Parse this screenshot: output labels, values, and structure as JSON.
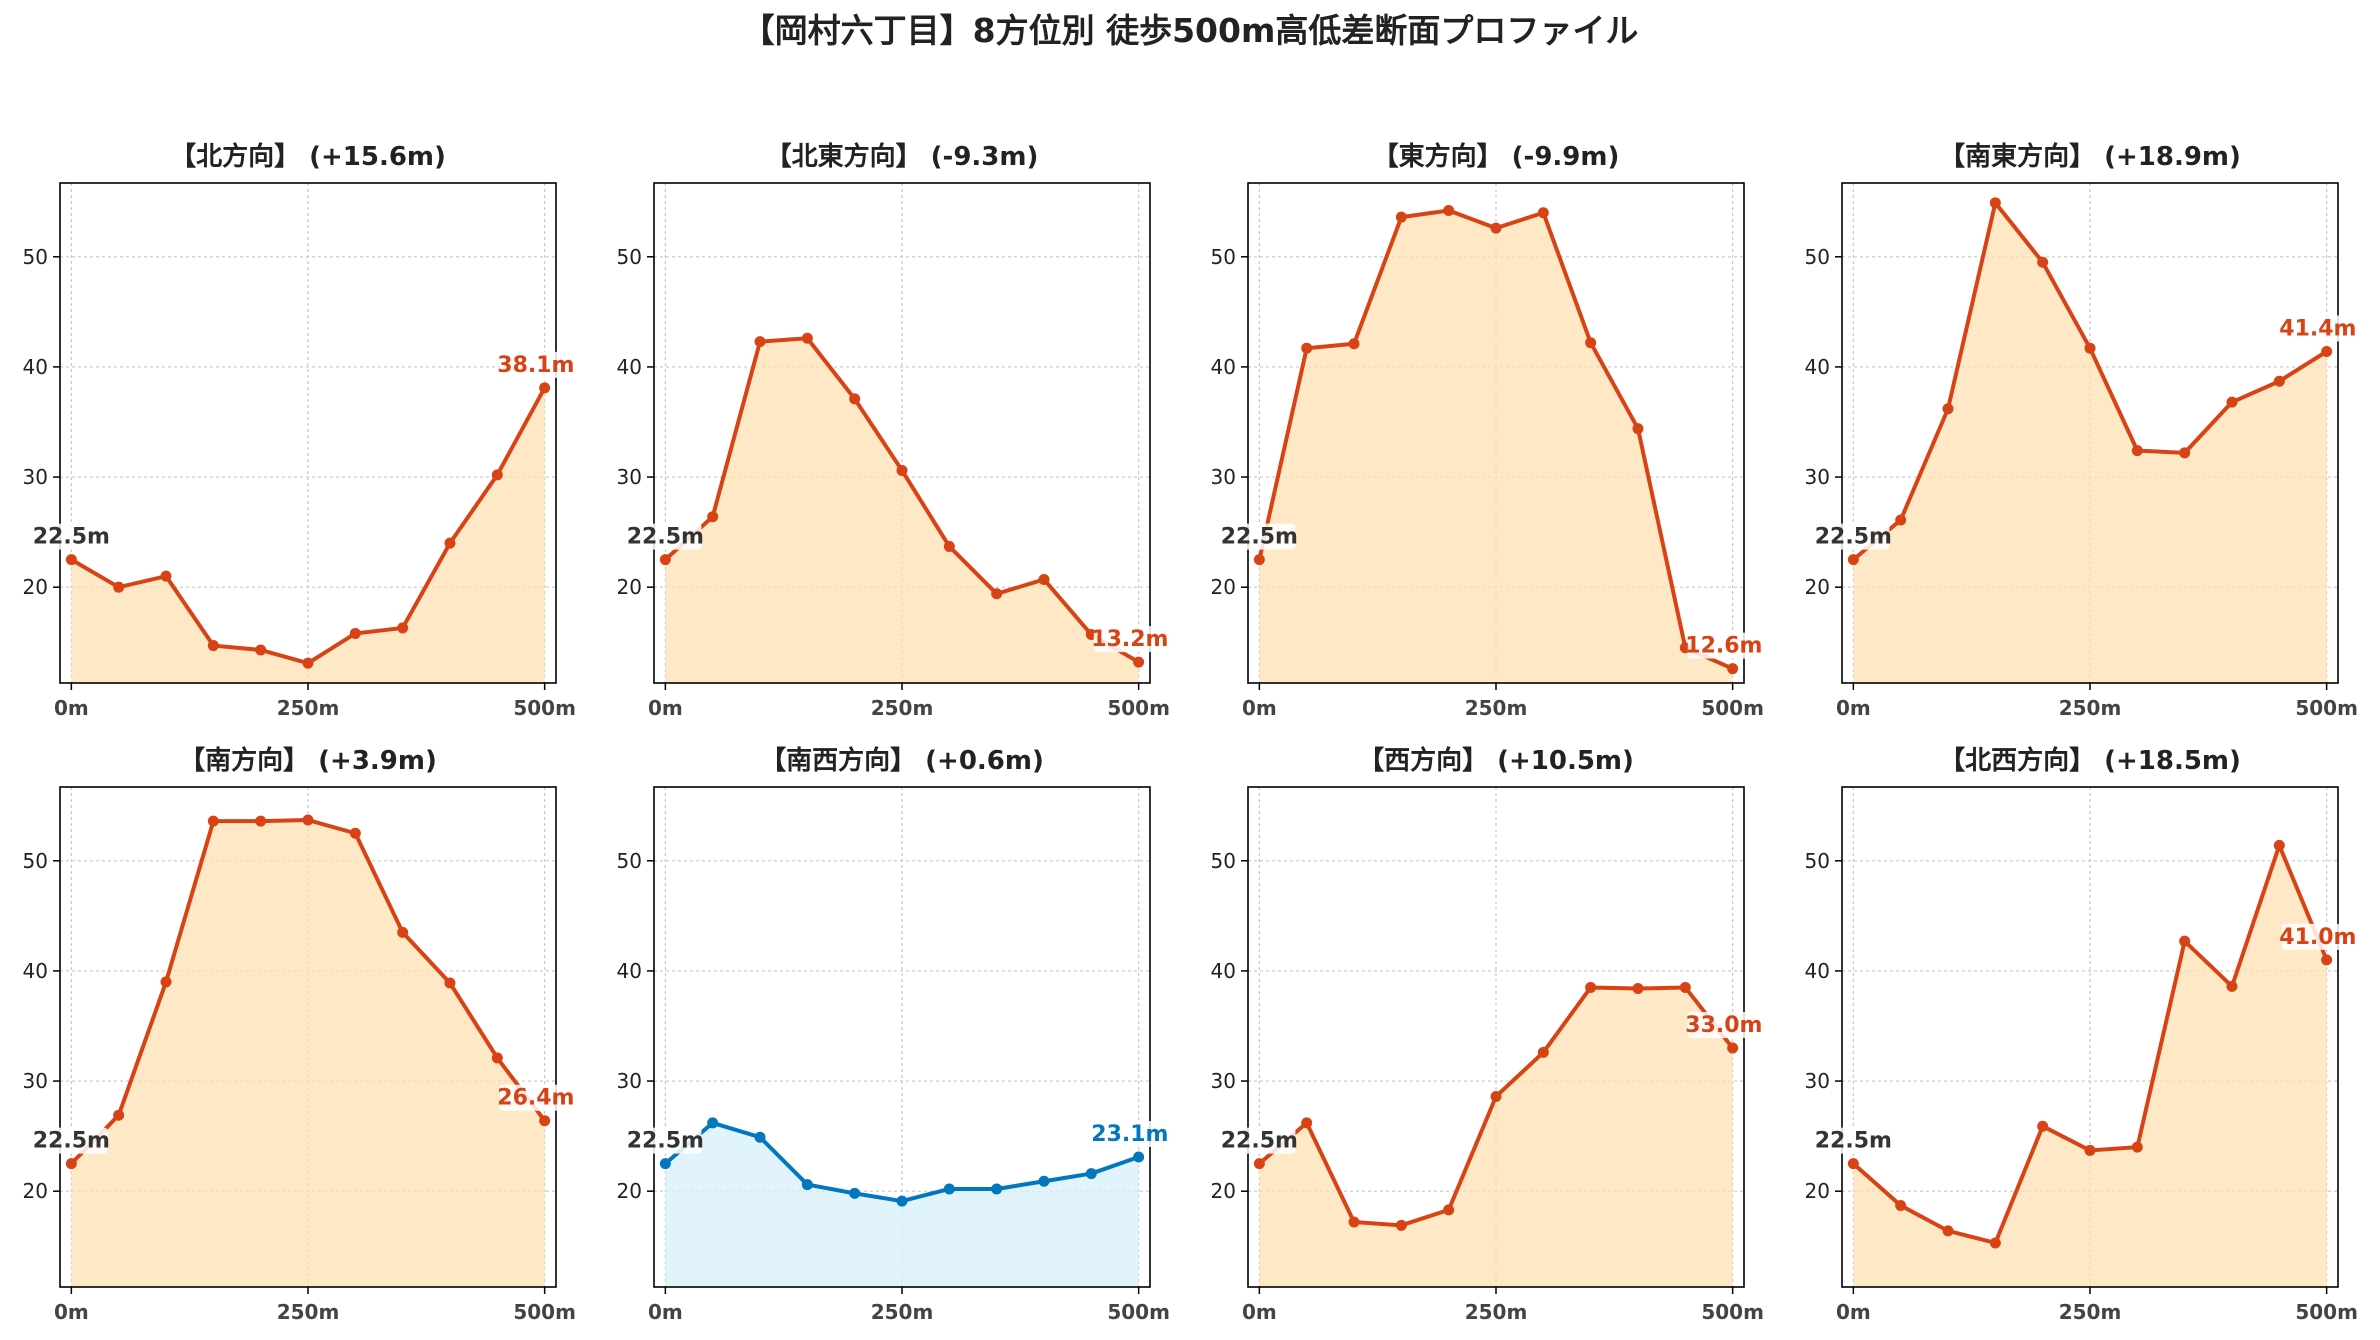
{
  "figure": {
    "title": "【岡村六丁目】8方位別 徒歩500m高低差断面プロファイル"
  },
  "colors": {
    "up_line": "#d84315",
    "up_fill": "#ffe0b2",
    "down_line": "#0277bd",
    "down_fill": "#d7f0fa",
    "start_label": "#333333",
    "grid": "#c8c8c8"
  },
  "chart_data": [
    {
      "type": "area",
      "title": "【北方向】 (+15.6m)",
      "x": [
        0,
        50,
        100,
        150,
        200,
        250,
        300,
        350,
        400,
        450,
        500
      ],
      "values": [
        22.5,
        20.0,
        21.0,
        14.7,
        14.3,
        13.1,
        15.8,
        16.3,
        24.0,
        30.2,
        38.1
      ],
      "start_label": "22.5m",
      "end_label": "38.1m",
      "style": "up",
      "xticks": [
        "0m",
        "250m",
        "500m"
      ],
      "yticks": [
        "20",
        "30",
        "40",
        "50"
      ],
      "xlim": [
        -12,
        512
      ],
      "ylim": [
        11.3,
        56.7
      ],
      "grid": true
    },
    {
      "type": "area",
      "title": "【北東方向】 (-9.3m)",
      "x": [
        0,
        50,
        100,
        150,
        200,
        250,
        300,
        350,
        400,
        450,
        500
      ],
      "values": [
        22.5,
        26.4,
        42.3,
        42.6,
        37.1,
        30.6,
        23.7,
        19.4,
        20.7,
        15.7,
        13.2
      ],
      "start_label": "22.5m",
      "end_label": "13.2m",
      "style": "up",
      "xticks": [
        "0m",
        "250m",
        "500m"
      ],
      "yticks": [
        "20",
        "30",
        "40",
        "50"
      ],
      "xlim": [
        -12,
        512
      ],
      "ylim": [
        11.3,
        56.7
      ],
      "grid": true
    },
    {
      "type": "area",
      "title": "【東方向】 (-9.9m)",
      "x": [
        0,
        50,
        100,
        150,
        200,
        250,
        300,
        350,
        400,
        450,
        500
      ],
      "values": [
        22.5,
        41.7,
        42.1,
        53.6,
        54.2,
        52.6,
        54.0,
        42.2,
        34.4,
        14.5,
        12.6
      ],
      "start_label": "22.5m",
      "end_label": "12.6m",
      "style": "up",
      "xticks": [
        "0m",
        "250m",
        "500m"
      ],
      "yticks": [
        "20",
        "30",
        "40",
        "50"
      ],
      "xlim": [
        -12,
        512
      ],
      "ylim": [
        11.3,
        56.7
      ],
      "grid": true
    },
    {
      "type": "area",
      "title": "【南東方向】 (+18.9m)",
      "x": [
        0,
        50,
        100,
        150,
        200,
        250,
        300,
        350,
        400,
        450,
        500
      ],
      "values": [
        22.5,
        26.1,
        36.2,
        54.9,
        49.5,
        41.7,
        32.4,
        32.2,
        36.8,
        38.7,
        41.4
      ],
      "start_label": "22.5m",
      "end_label": "41.4m",
      "style": "up",
      "xticks": [
        "0m",
        "250m",
        "500m"
      ],
      "yticks": [
        "20",
        "30",
        "40",
        "50"
      ],
      "xlim": [
        -12,
        512
      ],
      "ylim": [
        11.3,
        56.7
      ],
      "grid": true
    },
    {
      "type": "area",
      "title": "【南方向】 (+3.9m)",
      "x": [
        0,
        50,
        100,
        150,
        200,
        250,
        300,
        350,
        400,
        450,
        500
      ],
      "values": [
        22.5,
        26.9,
        39.0,
        53.6,
        53.6,
        53.7,
        52.5,
        43.5,
        38.9,
        32.1,
        26.4
      ],
      "start_label": "22.5m",
      "end_label": "26.4m",
      "style": "up",
      "xticks": [
        "0m",
        "250m",
        "500m"
      ],
      "yticks": [
        "20",
        "30",
        "40",
        "50"
      ],
      "xlim": [
        -12,
        512
      ],
      "ylim": [
        11.3,
        56.7
      ],
      "grid": true
    },
    {
      "type": "area",
      "title": "【南西方向】 (+0.6m)",
      "x": [
        0,
        50,
        100,
        150,
        200,
        250,
        300,
        350,
        400,
        450,
        500
      ],
      "values": [
        22.5,
        26.2,
        24.9,
        20.6,
        19.8,
        19.1,
        20.2,
        20.2,
        20.9,
        21.6,
        23.1
      ],
      "start_label": "22.5m",
      "end_label": "23.1m",
      "style": "down",
      "xticks": [
        "0m",
        "250m",
        "500m"
      ],
      "yticks": [
        "20",
        "30",
        "40",
        "50"
      ],
      "xlim": [
        -12,
        512
      ],
      "ylim": [
        11.3,
        56.7
      ],
      "grid": true
    },
    {
      "type": "area",
      "title": "【西方向】 (+10.5m)",
      "x": [
        0,
        50,
        100,
        150,
        200,
        250,
        300,
        350,
        400,
        450,
        500
      ],
      "values": [
        22.5,
        26.2,
        17.2,
        16.9,
        18.3,
        28.6,
        32.6,
        38.5,
        38.4,
        38.5,
        33.0
      ],
      "start_label": "22.5m",
      "end_label": "33.0m",
      "style": "up",
      "xticks": [
        "0m",
        "250m",
        "500m"
      ],
      "yticks": [
        "20",
        "30",
        "40",
        "50"
      ],
      "xlim": [
        -12,
        512
      ],
      "ylim": [
        11.3,
        56.7
      ],
      "grid": true
    },
    {
      "type": "area",
      "title": "【北西方向】 (+18.5m)",
      "x": [
        0,
        50,
        100,
        150,
        200,
        250,
        300,
        350,
        400,
        450,
        500
      ],
      "values": [
        22.5,
        18.7,
        16.4,
        15.3,
        25.9,
        23.7,
        24.0,
        42.7,
        38.6,
        51.4,
        41.0
      ],
      "start_label": "22.5m",
      "end_label": "41.0m",
      "style": "up",
      "xticks": [
        "0m",
        "250m",
        "500m"
      ],
      "yticks": [
        "20",
        "30",
        "40",
        "50"
      ],
      "xlim": [
        -12,
        512
      ],
      "ylim": [
        11.3,
        56.7
      ],
      "grid": true
    }
  ]
}
